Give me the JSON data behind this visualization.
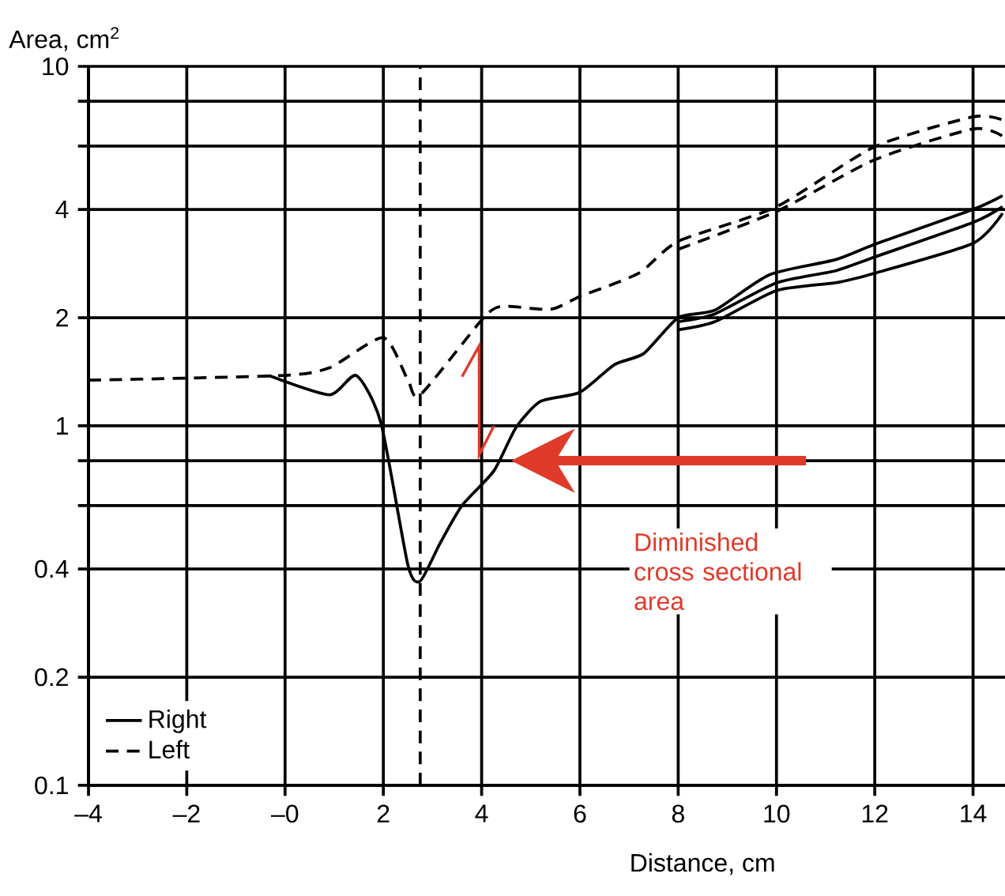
{
  "chart_data": {
    "type": "line",
    "xlabel": "Distance, cm",
    "ylabel": "Area, cm$^{2}$",
    "xlim": [
      -4,
      14.65
    ],
    "ylim": [
      0.1,
      10
    ],
    "log": "y",
    "grid": true,
    "legend": "bottom left",
    "marker": "none",
    "xticks": [
      {
        "value": -4,
        "label": "–4"
      },
      {
        "value": -2,
        "label": "–2"
      },
      {
        "value": 0,
        "label": "–0"
      },
      2,
      4,
      6,
      8,
      10,
      12,
      14
    ],
    "yticks": [
      0.1,
      0.2,
      0.4,
      {
        "value": 0.6,
        "label": null
      },
      {
        "value": 0.8,
        "label": null
      },
      1,
      2,
      4,
      {
        "value": 6,
        "label": null
      },
      {
        "value": 8,
        "label": null
      },
      10
    ],
    "series": [
      {
        "name": "Right",
        "color": "#000000",
        "line_style": "solid",
        "x": [
          -0.33,
          0.9,
          1.45,
          1.95,
          2.5,
          2.75,
          3.15,
          3.6,
          4.25,
          4.7,
          5.2,
          6.0,
          6.7,
          7.3,
          8.0,
          8.75,
          9.85,
          11.2,
          12.0,
          14.0,
          14.6
        ],
        "values": [
          1.38,
          1.22,
          1.38,
          1.02,
          0.41,
          0.37,
          0.47,
          0.6,
          0.75,
          0.99,
          1.17,
          1.24,
          1.48,
          1.59,
          2.0,
          2.1,
          2.63,
          2.9,
          3.2,
          4.0,
          4.37
        ]
      },
      {
        "name": "Left",
        "color": "#000000",
        "line_style": "dashed",
        "x": [
          -4,
          -0.1,
          0.9,
          2.0,
          2.5,
          2.75,
          4.0,
          4.4,
          5.4,
          6.0,
          7.2,
          8.0,
          10.0,
          12.0,
          14.0,
          14.6
        ],
        "values": [
          1.34,
          1.38,
          1.45,
          1.76,
          1.34,
          1.22,
          1.97,
          2.15,
          2.11,
          2.29,
          2.66,
          3.26,
          4.07,
          5.98,
          7.24,
          7.1
        ]
      },
      {
        "color": "#000000",
        "line_style": "solid",
        "x": [
          8.0,
          8.75,
          10.0,
          11.2,
          12.0,
          14.0,
          14.6
        ],
        "values": [
          1.95,
          2.05,
          2.5,
          2.7,
          2.95,
          3.68,
          4.07
        ]
      },
      {
        "color": "#000000",
        "line_style": "solid",
        "x": [
          8.0,
          8.75,
          10.0,
          11.2,
          12.0,
          14.0,
          14.6
        ],
        "values": [
          1.85,
          1.95,
          2.38,
          2.5,
          2.66,
          3.22,
          3.9
        ]
      },
      {
        "color": "#000000",
        "line_style": "dashed",
        "x": [
          8.0,
          10.0,
          12.0,
          14.0,
          14.6
        ],
        "values": [
          3.1,
          3.95,
          5.5,
          6.7,
          6.4
        ]
      }
    ],
    "ref_lines": [
      {
        "axis": "x",
        "value": 2.75,
        "color": "#000000",
        "line_style": "dashed"
      }
    ],
    "annotations": [
      "Diminished cross sectional area"
    ]
  }
}
